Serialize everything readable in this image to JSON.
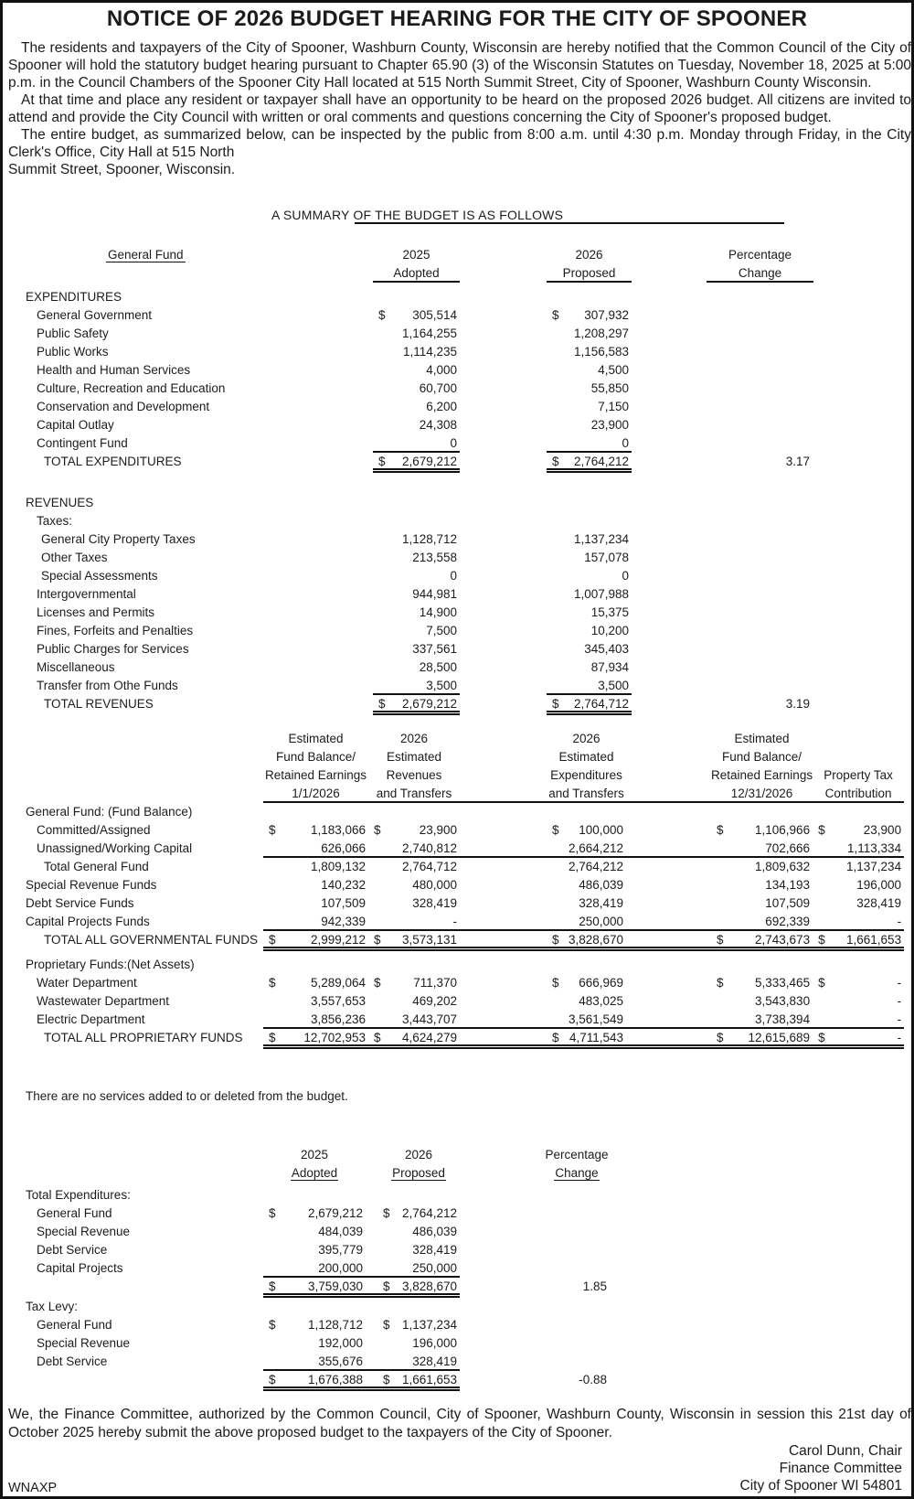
{
  "page": {
    "title": "NOTICE OF 2026 BUDGET HEARING FOR THE CITY OF SPOONER",
    "paragraphs": [
      "The residents and taxpayers of the City of Spooner, Washburn County, Wisconsin are hereby notified that the Common Council of the City of Spooner will hold the statutory budget hearing pursuant to Chapter 65.90 (3) of the Wisconsin Statutes on Tuesday, November 18, 2025 at 5:00 p.m. in the Council Chambers of the Spooner City Hall located at 515 North Summit Street, City of Spooner, Washburn County Wisconsin.",
      "At that time and place any resident or taxpayer shall have an opportunity to be heard on the proposed 2026 budget. All citizens are invited to attend and provide the City Council with written or oral comments and questions concerning the City of Spooner's proposed budget.",
      "The entire budget, as summarized below, can be inspected by the public from 8:00 a.m. until 4:30 p.m. Monday through Friday, in the City Clerk's Office, City Hall at 515 North\nSummit Street, Spooner, Wisconsin."
    ],
    "summary_heading": "A SUMMARY OF THE BUDGET IS AS FOLLOWS",
    "no_services_note": "There are no services added to or deleted from the budget.",
    "closing": "We, the Finance Committee, authorized by the Common Council, City of Spooner, Washburn County, Wisconsin in session this 21st day of October 2025 hereby submit the above proposed budget to the taxpayers of the City of Spooner.",
    "signature": [
      "Carol Dunn, Chair",
      "Finance Committee",
      "City of Spooner WI 54801"
    ],
    "footer_code": "WNAXP"
  },
  "general_fund_table": {
    "row_label_header": "General Fund",
    "columns": [
      [
        "2025",
        "Adopted"
      ],
      [
        "2026",
        "Proposed"
      ],
      [
        "Percentage",
        "Change"
      ]
    ],
    "rows": [
      {
        "label": "EXPENDITURES",
        "i": 0
      },
      {
        "label": "General Government",
        "i": 1,
        "c": [
          [
            "$",
            "305,514"
          ],
          [
            "$",
            "307,932"
          ]
        ]
      },
      {
        "label": "Public Safety",
        "i": 1,
        "c": [
          [
            "",
            "1,164,255"
          ],
          [
            "",
            "1,208,297"
          ]
        ]
      },
      {
        "label": "Public Works",
        "i": 1,
        "c": [
          [
            "",
            "1,114,235"
          ],
          [
            "",
            "1,156,583"
          ]
        ]
      },
      {
        "label": "Health and Human Services",
        "i": 1,
        "c": [
          [
            "",
            "4,000"
          ],
          [
            "",
            "4,500"
          ]
        ]
      },
      {
        "label": "Culture, Recreation and Education",
        "i": 1,
        "c": [
          [
            "",
            "60,700"
          ],
          [
            "",
            "55,850"
          ]
        ]
      },
      {
        "label": "Conservation and Development",
        "i": 1,
        "c": [
          [
            "",
            "6,200"
          ],
          [
            "",
            "7,150"
          ]
        ]
      },
      {
        "label": "Capital Outlay",
        "i": 1,
        "c": [
          [
            "",
            "24,308"
          ],
          [
            "",
            "23,900"
          ]
        ]
      },
      {
        "label": "Contingent Fund",
        "i": 1,
        "c": [
          [
            "",
            "0"
          ],
          [
            "",
            "0"
          ]
        ],
        "rule": "single"
      },
      {
        "label": "TOTAL EXPENDITURES",
        "i": 3,
        "c": [
          [
            "$",
            "2,679,212"
          ],
          [
            "$",
            "2,764,212"
          ]
        ],
        "pct": "3.17",
        "rule": "double"
      },
      {
        "spacer": 23
      },
      {
        "label": "REVENUES",
        "i": 0
      },
      {
        "label": "Taxes:",
        "i": 1
      },
      {
        "label": "General City Property Taxes",
        "i": 2,
        "c": [
          [
            "",
            "1,128,712"
          ],
          [
            "",
            "1,137,234"
          ]
        ]
      },
      {
        "label": "Other Taxes",
        "i": 2,
        "c": [
          [
            "",
            "213,558"
          ],
          [
            "",
            "157,078"
          ]
        ]
      },
      {
        "label": "Special Assessments",
        "i": 2,
        "c": [
          [
            "",
            "0"
          ],
          [
            "",
            "0"
          ]
        ]
      },
      {
        "label": "Intergovernmental",
        "i": 1,
        "c": [
          [
            "",
            "944,981"
          ],
          [
            "",
            "1,007,988"
          ]
        ]
      },
      {
        "label": "Licenses and Permits",
        "i": 1,
        "c": [
          [
            "",
            "14,900"
          ],
          [
            "",
            "15,375"
          ]
        ]
      },
      {
        "label": "Fines, Forfeits and Penalties",
        "i": 1,
        "c": [
          [
            "",
            "7,500"
          ],
          [
            "",
            "10,200"
          ]
        ]
      },
      {
        "label": "Public Charges for Services",
        "i": 1,
        "c": [
          [
            "",
            "337,561"
          ],
          [
            "",
            "345,403"
          ]
        ]
      },
      {
        "label": "Miscellaneous",
        "i": 1,
        "c": [
          [
            "",
            "28,500"
          ],
          [
            "",
            "87,934"
          ]
        ]
      },
      {
        "label": "Transfer from Othe Funds",
        "i": 1,
        "c": [
          [
            "",
            "3,500"
          ],
          [
            "",
            "3,500"
          ]
        ],
        "rule": "single"
      },
      {
        "label": "TOTAL REVENUES",
        "i": 3,
        "c": [
          [
            "$",
            "2,679,212"
          ],
          [
            "$",
            "2,764,712"
          ]
        ],
        "pct": "3.19",
        "rule": "double"
      }
    ]
  },
  "fund_balance_table": {
    "columns": [
      [
        "Estimated",
        "Fund Balance/",
        "Retained Earnings",
        "1/1/2026"
      ],
      [
        "2026",
        "Estimated",
        "Revenues",
        "and Transfers"
      ],
      [
        "2026",
        "Estimated",
        "Expenditures",
        "and Transfers"
      ],
      [
        "Estimated",
        "Fund Balance/",
        "Retained Earnings",
        "12/31/2026"
      ],
      [
        "",
        "",
        "Property Tax",
        "Contribution"
      ]
    ],
    "rows": [
      {
        "label": "General Fund: (Fund Balance)",
        "i": 0
      },
      {
        "label": "Committed/Assigned",
        "i": 1,
        "c": [
          [
            "$",
            "1,183,066"
          ],
          [
            "$",
            "23,900"
          ],
          [
            "$",
            "100,000"
          ],
          [
            "$",
            "1,106,966"
          ],
          [
            "$",
            "23,900"
          ]
        ]
      },
      {
        "label": "Unassigned/Working Capital",
        "i": 1,
        "c": [
          [
            "",
            "626,066"
          ],
          [
            "",
            "2,740,812"
          ],
          [
            "",
            "2,664,212"
          ],
          [
            "",
            "702,666"
          ],
          [
            "",
            "1,113,334"
          ]
        ],
        "rule": "single"
      },
      {
        "label": "Total General Fund",
        "i": 3,
        "c": [
          [
            "",
            "1,809,132"
          ],
          [
            "",
            "2,764,712"
          ],
          [
            "",
            "2,764,212"
          ],
          [
            "",
            "1,809,632"
          ],
          [
            "",
            "1,137,234"
          ]
        ]
      },
      {
        "label": "Special Revenue Funds",
        "i": 0,
        "c": [
          [
            "",
            "140,232"
          ],
          [
            "",
            "480,000"
          ],
          [
            "",
            "486,039"
          ],
          [
            "",
            "134,193"
          ],
          [
            "",
            "196,000"
          ]
        ]
      },
      {
        "label": "Debt Service Funds",
        "i": 0,
        "c": [
          [
            "",
            "107,509"
          ],
          [
            "",
            "328,419"
          ],
          [
            "",
            "328,419"
          ],
          [
            "",
            "107,509"
          ],
          [
            "",
            "328,419"
          ]
        ]
      },
      {
        "label": "Capital Projects Funds",
        "i": 0,
        "c": [
          [
            "",
            "942,339"
          ],
          [
            "",
            "-"
          ],
          [
            "",
            "250,000"
          ],
          [
            "",
            "692,339"
          ],
          [
            "",
            "-"
          ]
        ],
        "rule": "single"
      },
      {
        "label": "TOTAL ALL GOVERNMENTAL FUNDS",
        "i": 3,
        "c": [
          [
            "$",
            "2,999,212"
          ],
          [
            "$",
            "3,573,131"
          ],
          [
            "$",
            "3,828,670"
          ],
          [
            "$",
            "2,743,673"
          ],
          [
            "$",
            "1,661,653"
          ]
        ],
        "rule": "double"
      },
      {
        "spacer": 5
      },
      {
        "label": "Proprietary Funds:(Net Assets)",
        "i": 0
      },
      {
        "label": "Water Department",
        "i": 1,
        "c": [
          [
            "$",
            "5,289,064"
          ],
          [
            "$",
            "711,370"
          ],
          [
            "$",
            "666,969"
          ],
          [
            "$",
            "5,333,465"
          ],
          [
            "$",
            "-"
          ]
        ]
      },
      {
        "label": "Wastewater Department",
        "i": 1,
        "c": [
          [
            "",
            "3,557,653"
          ],
          [
            "",
            "469,202"
          ],
          [
            "",
            "483,025"
          ],
          [
            "",
            "3,543,830"
          ],
          [
            "",
            "-"
          ]
        ]
      },
      {
        "label": "Electric Department",
        "i": 1,
        "c": [
          [
            "",
            "3,856,236"
          ],
          [
            "",
            "3,443,707"
          ],
          [
            "",
            "3,561,549"
          ],
          [
            "",
            "3,738,394"
          ],
          [
            "",
            "-"
          ]
        ],
        "rule": "single"
      },
      {
        "label": "TOTAL ALL PROPRIETARY FUNDS",
        "i": 3,
        "c": [
          [
            "$",
            "12,702,953"
          ],
          [
            "$",
            "4,624,279"
          ],
          [
            "$",
            "4,711,543"
          ],
          [
            "$",
            "12,615,689"
          ],
          [
            "$",
            "-"
          ]
        ],
        "rule": "double"
      }
    ]
  },
  "totals_table": {
    "columns": [
      [
        "2025",
        "Adopted"
      ],
      [
        "2026",
        "Proposed"
      ],
      [
        "Percentage",
        "Change"
      ]
    ],
    "rows": [
      {
        "label": "Total Expenditures:",
        "i": 0
      },
      {
        "label": "General Fund",
        "i": 1,
        "c": [
          [
            "$",
            "2,679,212"
          ],
          [
            "$",
            "2,764,212"
          ]
        ]
      },
      {
        "label": "Special Revenue",
        "i": 1,
        "c": [
          [
            "",
            "484,039"
          ],
          [
            "",
            "486,039"
          ]
        ]
      },
      {
        "label": "Debt Service",
        "i": 1,
        "c": [
          [
            "",
            "395,779"
          ],
          [
            "",
            "328,419"
          ]
        ]
      },
      {
        "label": "Capital Projects",
        "i": 1,
        "c": [
          [
            "",
            "200,000"
          ],
          [
            "",
            "250,000"
          ]
        ],
        "rule": "single"
      },
      {
        "label": "",
        "i": 0,
        "c": [
          [
            "$",
            "3,759,030"
          ],
          [
            "$",
            "3,828,670"
          ]
        ],
        "pct": "1.85",
        "rule": "double"
      },
      {
        "label": "Tax Levy:",
        "i": 0
      },
      {
        "label": "General Fund",
        "i": 1,
        "c": [
          [
            "$",
            "1,128,712"
          ],
          [
            "$",
            "1,137,234"
          ]
        ]
      },
      {
        "label": "Special Revenue",
        "i": 1,
        "c": [
          [
            "",
            "192,000"
          ],
          [
            "",
            "196,000"
          ]
        ]
      },
      {
        "label": "Debt Service",
        "i": 1,
        "c": [
          [
            "",
            "355,676"
          ],
          [
            "",
            "328,419"
          ]
        ],
        "rule": "single"
      },
      {
        "label": "",
        "i": 0,
        "c": [
          [
            "$",
            "1,676,388"
          ],
          [
            "$",
            "1,661,653"
          ]
        ],
        "pct": "-0.88",
        "rule": "double"
      }
    ]
  }
}
